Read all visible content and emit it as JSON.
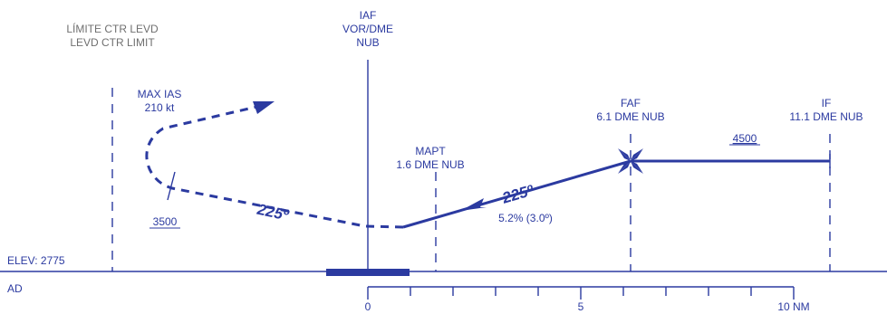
{
  "colors": {
    "ink": "#2b3aa0",
    "gray": "#6f6f6f",
    "bg": "#ffffff"
  },
  "labels": {
    "ctr_limit_es": "LÍMITE CTR LEVD",
    "ctr_limit_en": "LEVD CTR LIMIT",
    "iaf_1": "IAF",
    "iaf_2": "VOR/DME",
    "iaf_3": "NUB",
    "max_ias_1": "MAX IAS",
    "max_ias_2": "210 kt",
    "faf_1": "FAF",
    "faf_2": "6.1 DME NUB",
    "if_1": "IF",
    "if_2": "11.1 DME NUB",
    "mapt_1": "MAPT",
    "mapt_2": "1.6 DME NUB",
    "alt_4500": "4500",
    "alt_3500": "3500",
    "course_final": "225º",
    "course_missed": "225º",
    "gradient": "5.2% (3.0º)",
    "elev": "ELEV: 2775",
    "ad": "AD"
  },
  "scale": {
    "tick_labels": [
      "0",
      "5",
      "10 NM"
    ]
  }
}
